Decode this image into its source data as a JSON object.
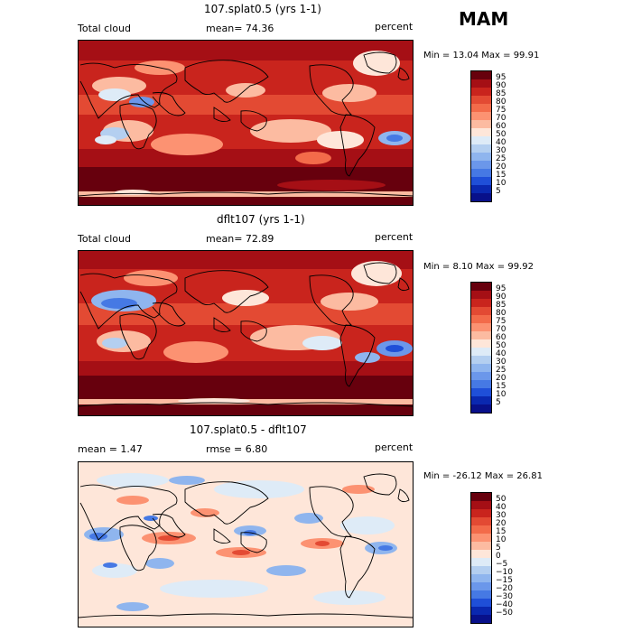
{
  "season": "MAM",
  "panels": [
    {
      "title": "107.splat0.5 (yrs 1-1)",
      "left_label": "Total cloud",
      "center_label": "mean=  74.36",
      "right_label": "percent",
      "minmax": "Min =  13.04 Max =  99.91",
      "colorbar": {
        "labels": [
          "95",
          "90",
          "85",
          "80",
          "75",
          "70",
          "60",
          "50",
          "40",
          "30",
          "25",
          "20",
          "15",
          "10",
          "5"
        ],
        "colors": [
          "#67000d",
          "#a50f15",
          "#c9241d",
          "#e34a33",
          "#f36b4a",
          "#fc9272",
          "#fcbba1",
          "#fee6d9",
          "#deebf7",
          "#b4cff0",
          "#8fb5ee",
          "#6b97ea",
          "#4679e4",
          "#1f4fd8",
          "#0a28b0",
          "#08108a"
        ]
      }
    },
    {
      "title": "dflt107 (yrs 1-1)",
      "left_label": "Total cloud",
      "center_label": "mean=  72.89",
      "right_label": "percent",
      "minmax": "Min =   8.10 Max =  99.92",
      "colorbar": {
        "labels": [
          "95",
          "90",
          "85",
          "80",
          "75",
          "70",
          "60",
          "50",
          "40",
          "30",
          "25",
          "20",
          "15",
          "10",
          "5"
        ],
        "colors": [
          "#67000d",
          "#a50f15",
          "#c9241d",
          "#e34a33",
          "#f36b4a",
          "#fc9272",
          "#fcbba1",
          "#fee6d9",
          "#deebf7",
          "#b4cff0",
          "#8fb5ee",
          "#6b97ea",
          "#4679e4",
          "#1f4fd8",
          "#0a28b0",
          "#08108a"
        ]
      }
    },
    {
      "title": "107.splat0.5 - dflt107",
      "left_label": "mean =   1.47",
      "center_label": "rmse =   6.80",
      "right_label": "percent",
      "minmax": "Min = -26.12 Max =  26.81",
      "colorbar": {
        "labels": [
          "50",
          "40",
          "30",
          "20",
          "15",
          "10",
          "5",
          "0",
          "−5",
          "−10",
          "−15",
          "−20",
          "−30",
          "−40",
          "−50"
        ],
        "colors": [
          "#67000d",
          "#a50f15",
          "#c9241d",
          "#e34a33",
          "#f36b4a",
          "#fc9272",
          "#fcbba1",
          "#fee6d9",
          "#deebf7",
          "#b4cff0",
          "#8fb5ee",
          "#6b97ea",
          "#4679e4",
          "#1f4fd8",
          "#0a28b0",
          "#08108a"
        ]
      }
    }
  ]
}
